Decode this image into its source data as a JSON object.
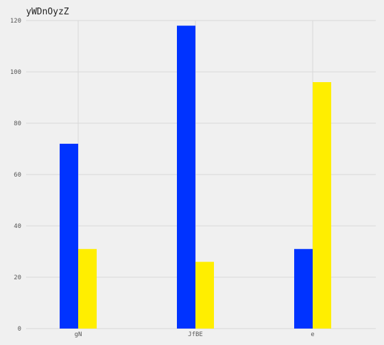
{
  "chart_data": {
    "type": "bar",
    "title": "yWDnOyzZ",
    "xlabel": "",
    "ylabel": "",
    "categories": [
      "gN",
      "JfBE",
      "e"
    ],
    "series": [
      {
        "values": [
          72,
          118,
          31
        ],
        "color": "#0033ff"
      },
      {
        "values": [
          31,
          26,
          96
        ],
        "color": "#ffee00"
      }
    ],
    "ylim": [
      0,
      120
    ],
    "yticks": [
      0,
      20,
      40,
      60,
      80,
      100,
      120
    ],
    "grid": true,
    "legend": "none"
  }
}
